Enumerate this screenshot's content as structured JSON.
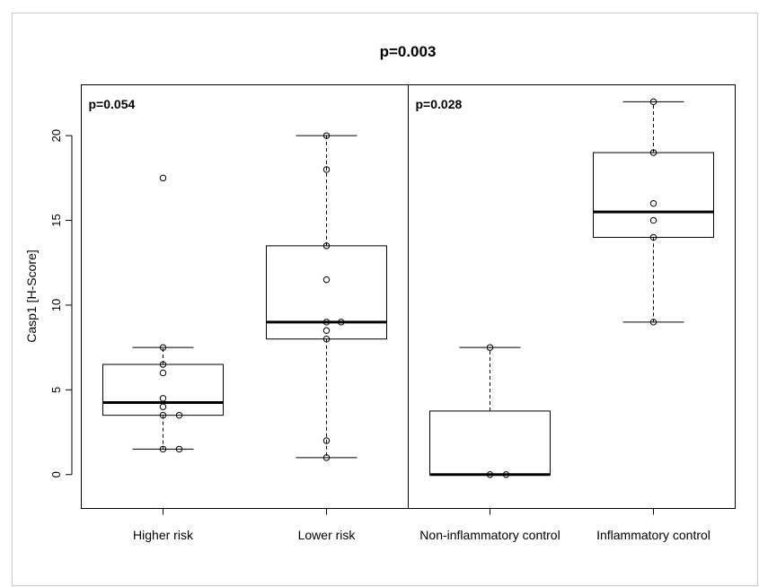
{
  "chart_data": {
    "type": "boxplot",
    "title": "p=0.003",
    "ylabel": "Casp1 [H-Score]",
    "xlabel": "",
    "ylim": [
      -2,
      23
    ],
    "yticks": [
      0,
      5,
      10,
      15,
      20
    ],
    "grid": false,
    "legend": "none",
    "panels": [
      {
        "annotation": "p=0.054",
        "groups": [
          {
            "category": "Higher risk",
            "box": {
              "whisker_low": 1.5,
              "q1": 3.5,
              "median": 4.25,
              "q3": 6.5,
              "whisker_high": 7.5
            },
            "points": [
              {
                "y": 17.5,
                "dx": 0
              },
              {
                "y": 7.5,
                "dx": 0
              },
              {
                "y": 6.5,
                "dx": 0
              },
              {
                "y": 6.0,
                "dx": 0
              },
              {
                "y": 4.5,
                "dx": 0
              },
              {
                "y": 4.0,
                "dx": 0
              },
              {
                "y": 3.5,
                "dx": 0
              },
              {
                "y": 3.5,
                "dx": 0.2
              },
              {
                "y": 1.5,
                "dx": 0
              },
              {
                "y": 1.5,
                "dx": 0.2
              }
            ]
          },
          {
            "category": "Lower risk",
            "box": {
              "whisker_low": 1.0,
              "q1": 8.0,
              "median": 9.0,
              "q3": 13.5,
              "whisker_high": 20.0
            },
            "points": [
              {
                "y": 20.0,
                "dx": 0
              },
              {
                "y": 18.0,
                "dx": 0
              },
              {
                "y": 13.5,
                "dx": 0
              },
              {
                "y": 11.5,
                "dx": 0
              },
              {
                "y": 9.0,
                "dx": 0
              },
              {
                "y": 9.0,
                "dx": 0.18
              },
              {
                "y": 8.5,
                "dx": 0
              },
              {
                "y": 8.0,
                "dx": 0
              },
              {
                "y": 2.0,
                "dx": 0
              },
              {
                "y": 1.0,
                "dx": 0
              }
            ]
          }
        ]
      },
      {
        "annotation": "p=0.028",
        "groups": [
          {
            "category": "Non-inflammatory control",
            "box": {
              "whisker_low": 0.0,
              "q1": 0.0,
              "median": 0.0,
              "q3": 3.75,
              "whisker_high": 7.5
            },
            "points": [
              {
                "y": 7.5,
                "dx": 0
              },
              {
                "y": 0.0,
                "dx": 0
              },
              {
                "y": 0.0,
                "dx": 0.2
              }
            ]
          },
          {
            "category": "Inflammatory control",
            "box": {
              "whisker_low": 9.0,
              "q1": 14.0,
              "median": 15.5,
              "q3": 19.0,
              "whisker_high": 22.0
            },
            "points": [
              {
                "y": 22.0,
                "dx": 0
              },
              {
                "y": 19.0,
                "dx": 0
              },
              {
                "y": 16.0,
                "dx": 0
              },
              {
                "y": 15.0,
                "dx": 0
              },
              {
                "y": 14.0,
                "dx": 0
              },
              {
                "y": 9.0,
                "dx": 0
              }
            ]
          }
        ]
      }
    ]
  }
}
